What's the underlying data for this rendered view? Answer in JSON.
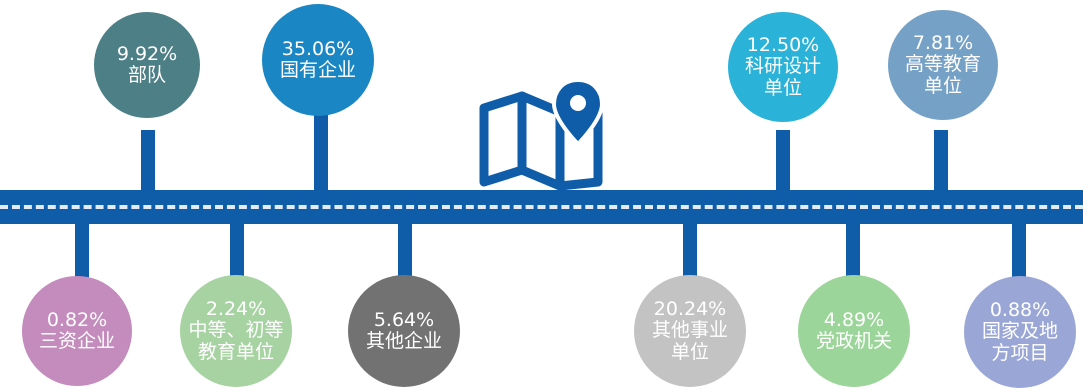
{
  "chart_data": {
    "type": "infographic",
    "items": [
      {
        "percent": "9.92%",
        "value": 9.92,
        "label": "部队",
        "color": "#4d7f86",
        "side": "top"
      },
      {
        "percent": "35.06%",
        "value": 35.06,
        "label": "国有企业",
        "color": "#1a86c4",
        "side": "top"
      },
      {
        "percent": "12.50%",
        "value": 12.5,
        "label": "科研设计\n单位",
        "color": "#2ab2d8",
        "side": "top"
      },
      {
        "percent": "7.81%",
        "value": 7.81,
        "label": "高等教育\n单位",
        "color": "#76a1c6",
        "side": "top"
      },
      {
        "percent": "0.82%",
        "value": 0.82,
        "label": "三资企业",
        "color": "#c48bbd",
        "side": "bottom"
      },
      {
        "percent": "2.24%",
        "value": 2.24,
        "label": "中等、初等\n教育单位",
        "color": "#a6d3a1",
        "side": "bottom"
      },
      {
        "percent": "5.64%",
        "value": 5.64,
        "label": "其他企业",
        "color": "#727272",
        "side": "bottom"
      },
      {
        "percent": "20.24%",
        "value": 20.24,
        "label": "其他事业\n单位",
        "color": "#c3c3c3",
        "side": "bottom"
      },
      {
        "percent": "4.89%",
        "value": 4.89,
        "label": "党政机关",
        "color": "#9cd59a",
        "side": "bottom"
      },
      {
        "percent": "0.88%",
        "value": 0.88,
        "label": "国家及地\n方项目",
        "color": "#9aa7d6",
        "side": "bottom"
      }
    ]
  },
  "road": {
    "color": "#0f5ca8",
    "lane_color": "#e3ecf6"
  },
  "icons": {
    "center": "map-location-icon"
  }
}
